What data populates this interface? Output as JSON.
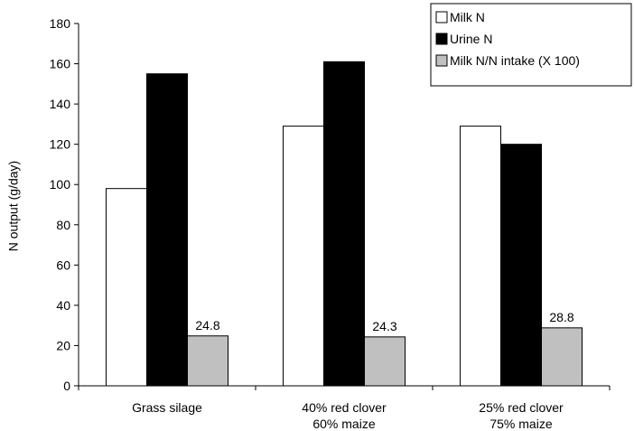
{
  "chart_data": {
    "type": "bar",
    "categories": [
      [
        "Grass silage"
      ],
      [
        "40% red clover",
        "60% maize"
      ],
      [
        "25% red clover",
        "75% maize"
      ]
    ],
    "series": [
      {
        "name": "Milk N",
        "values": [
          98,
          129,
          129
        ],
        "color": "#ffffff"
      },
      {
        "name": "Urine N",
        "values": [
          155,
          161,
          120
        ],
        "color": "#000000"
      },
      {
        "name": "Milk N/N intake (X 100)",
        "values": [
          24.8,
          24.3,
          28.8
        ],
        "color": "#c0c0c0",
        "labels": [
          "24.8",
          "24.3",
          "28.8"
        ]
      }
    ],
    "title": "",
    "xlabel": "",
    "ylabel": "N output (g/day)",
    "ylim": [
      0,
      180
    ],
    "yticks": [
      0,
      20,
      40,
      60,
      80,
      100,
      120,
      140,
      160,
      180
    ],
    "grid": false,
    "legend_position": "top-right"
  }
}
